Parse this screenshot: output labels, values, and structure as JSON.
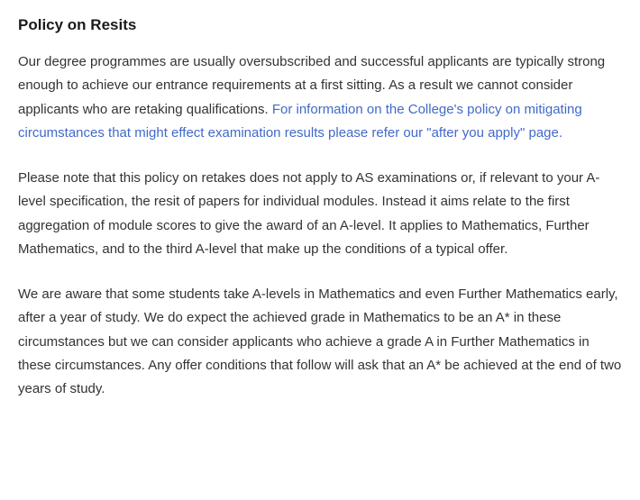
{
  "heading": "Policy on Resits",
  "para1_pre": "Our degree programmes are usually oversubscribed and successful applicants are typically strong enough to achieve our entrance requirements at a first sitting. As a result we cannot consider applicants who are retaking qualifications. ",
  "para1_link": "For information on the College's policy on mitigating circumstances that might effect examination results please refer our \"after you apply\" page.",
  "para2": "Please note that this policy on retakes does not apply to AS examinations or, if relevant to your A-level specification, the resit of papers for individual modules. Instead it aims relate to the first aggregation of module scores to give the award of an A-level. It applies to Mathematics, Further Mathematics, and to the third A-level that make up the conditions of a typical offer.",
  "para3": "We are aware that some students take A-levels in Mathematics and even Further Mathematics early, after a year of study. We do expect the achieved grade in Mathematics to be an A* in these circumstances but we can consider applicants who achieve a grade A in Further Mathematics in these circumstances. Any offer conditions that follow will ask that an A* be achieved at the end of two years of study."
}
